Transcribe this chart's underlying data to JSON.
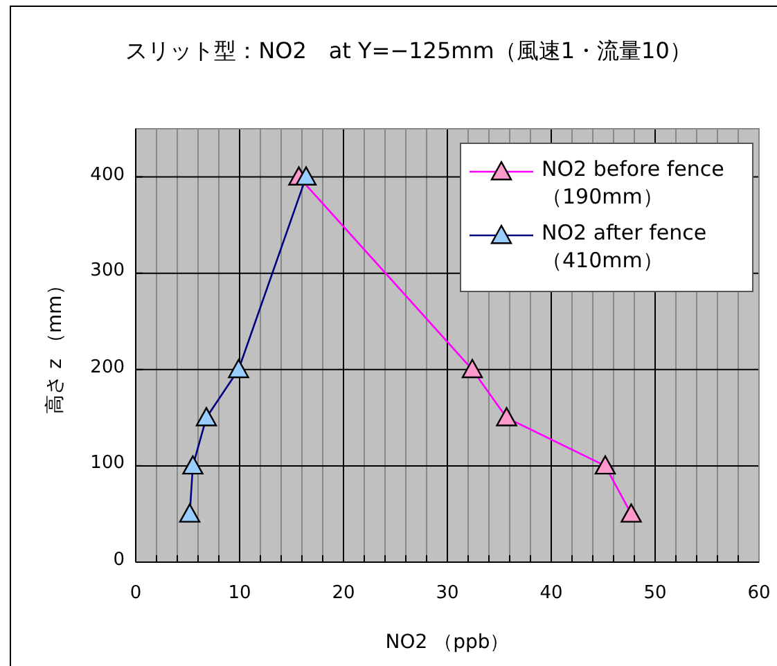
{
  "chart_data": {
    "type": "line",
    "title": "スリット型：NO2　at Y=−125mm（風速1・流量10）",
    "xlabel": "NO2 （ppb）",
    "ylabel": "高さ z （mm）",
    "xlim": [
      0,
      60
    ],
    "ylim": [
      0,
      450
    ],
    "xticks": [
      0,
      {
        "value": 2,
        "label": null
      },
      {
        "value": 4,
        "label": null
      },
      {
        "value": 6,
        "label": null
      },
      {
        "value": 8,
        "label": null
      },
      10,
      {
        "value": 12,
        "label": null
      },
      {
        "value": 14,
        "label": null
      },
      {
        "value": 16,
        "label": null
      },
      {
        "value": 18,
        "label": null
      },
      20,
      {
        "value": 22,
        "label": null
      },
      {
        "value": 24,
        "label": null
      },
      {
        "value": 26,
        "label": null
      },
      {
        "value": 28,
        "label": null
      },
      30,
      {
        "value": 32,
        "label": null
      },
      {
        "value": 34,
        "label": null
      },
      {
        "value": 36,
        "label": null
      },
      {
        "value": 38,
        "label": null
      },
      40,
      {
        "value": 42,
        "label": null
      },
      {
        "value": 44,
        "label": null
      },
      {
        "value": 46,
        "label": null
      },
      {
        "value": 48,
        "label": null
      },
      50,
      {
        "value": 52,
        "label": null
      },
      {
        "value": 54,
        "label": null
      },
      {
        "value": 56,
        "label": null
      },
      {
        "value": 58,
        "label": null
      },
      60
    ],
    "yticks": [
      0,
      100,
      200,
      300,
      400
    ],
    "grid": true,
    "legend": "top right",
    "marker": "triangle",
    "line_style": "solid",
    "series": [
      {
        "name": "NO2 before fence （190mm）",
        "color": "#ff00ff",
        "colors": [
          "#ff99cc",
          "#ff99cc",
          "#ff99cc",
          "#ff99cc",
          "#ff99cc"
        ],
        "x": [
          47.7,
          45.2,
          35.7,
          32.4,
          15.7
        ],
        "values": [
          50,
          100,
          150,
          200,
          400
        ]
      },
      {
        "name": "NO2 after fence （410mm）",
        "color": "#000080",
        "colors": [
          "#99ccff",
          "#99ccff",
          "#99ccff",
          "#99ccff",
          "#99ccff"
        ],
        "x": [
          5.2,
          5.5,
          6.8,
          9.9,
          16.4
        ],
        "values": [
          50,
          100,
          150,
          200,
          400
        ]
      }
    ]
  }
}
